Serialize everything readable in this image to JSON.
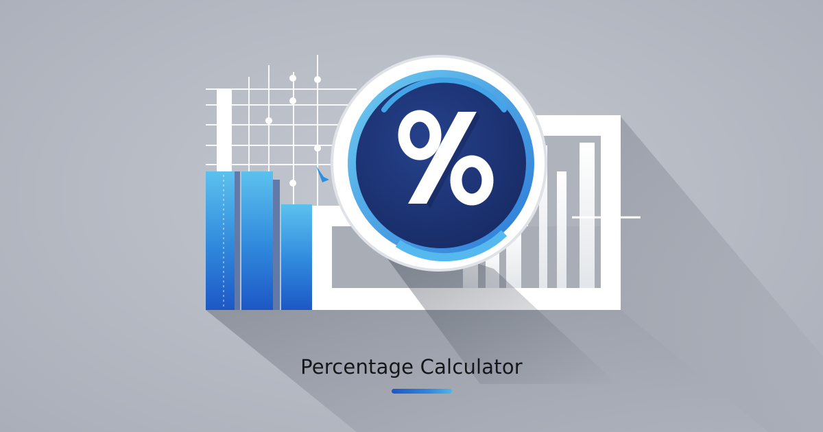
{
  "title": "Percentage Calculator",
  "icons": {
    "emblem": "percent-icon",
    "chart": "bar-chart-icon"
  },
  "colors": {
    "background": "#b9bdc6",
    "accent_blue": "#2b7fd9",
    "light_blue": "#4fb4ea",
    "navy": "#1c3376",
    "frame_white": "#ffffff",
    "text": "#15161a"
  }
}
